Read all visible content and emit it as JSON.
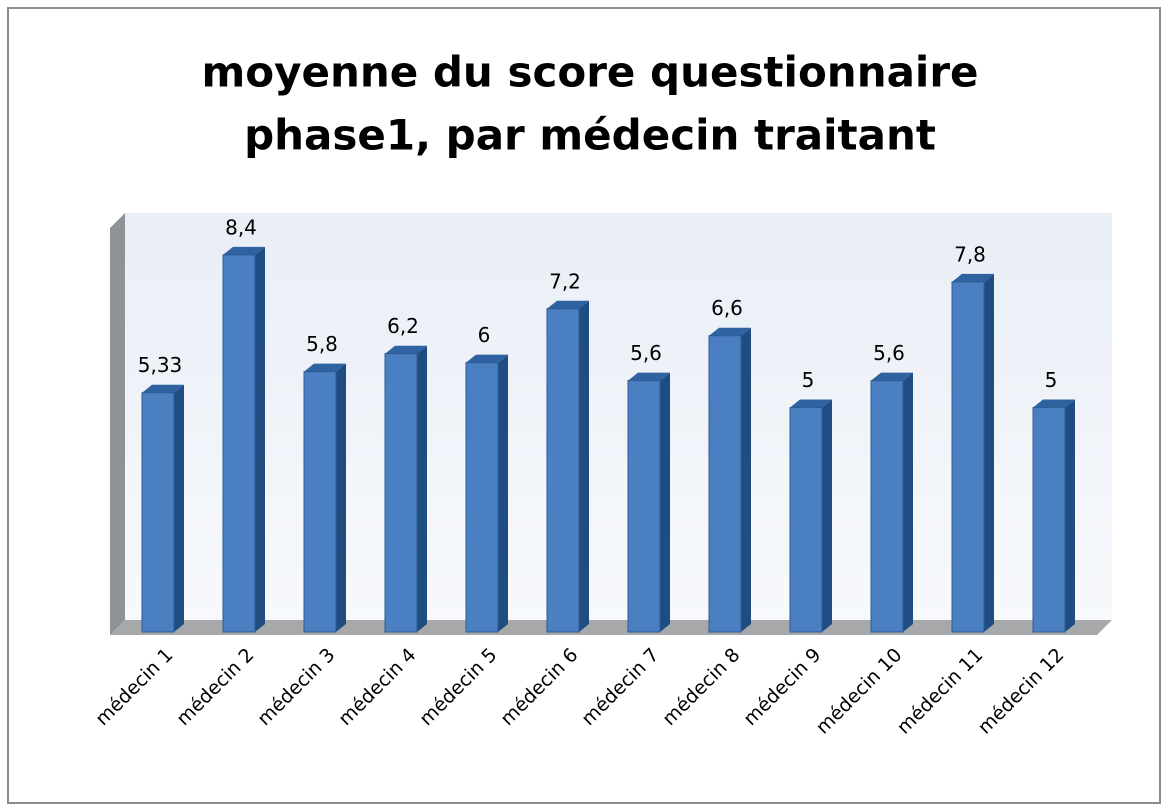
{
  "chart_data": {
    "type": "bar3d",
    "title": [
      "moyenne du score questionnaire",
      "phase1, par médecin traitant"
    ],
    "categories": [
      "médecin 1",
      "médecin 2",
      "médecin 3",
      "médecin 4",
      "médecin 5",
      "médecin 6",
      "médecin 7",
      "médecin 8",
      "médecin 9",
      "médecin 10",
      "médecin 11",
      "médecin 12"
    ],
    "values": [
      5.33,
      8.4,
      5.8,
      6.2,
      6,
      7.2,
      5.6,
      6.6,
      5,
      5.6,
      7.8,
      5
    ],
    "value_labels": [
      "5,33",
      "8,4",
      "5,8",
      "6,2",
      "6",
      "7,2",
      "5,6",
      "6,6",
      "5",
      "5,6",
      "7,8",
      "5"
    ],
    "color": "#4a7fc1",
    "ylim": [
      0,
      9
    ]
  }
}
